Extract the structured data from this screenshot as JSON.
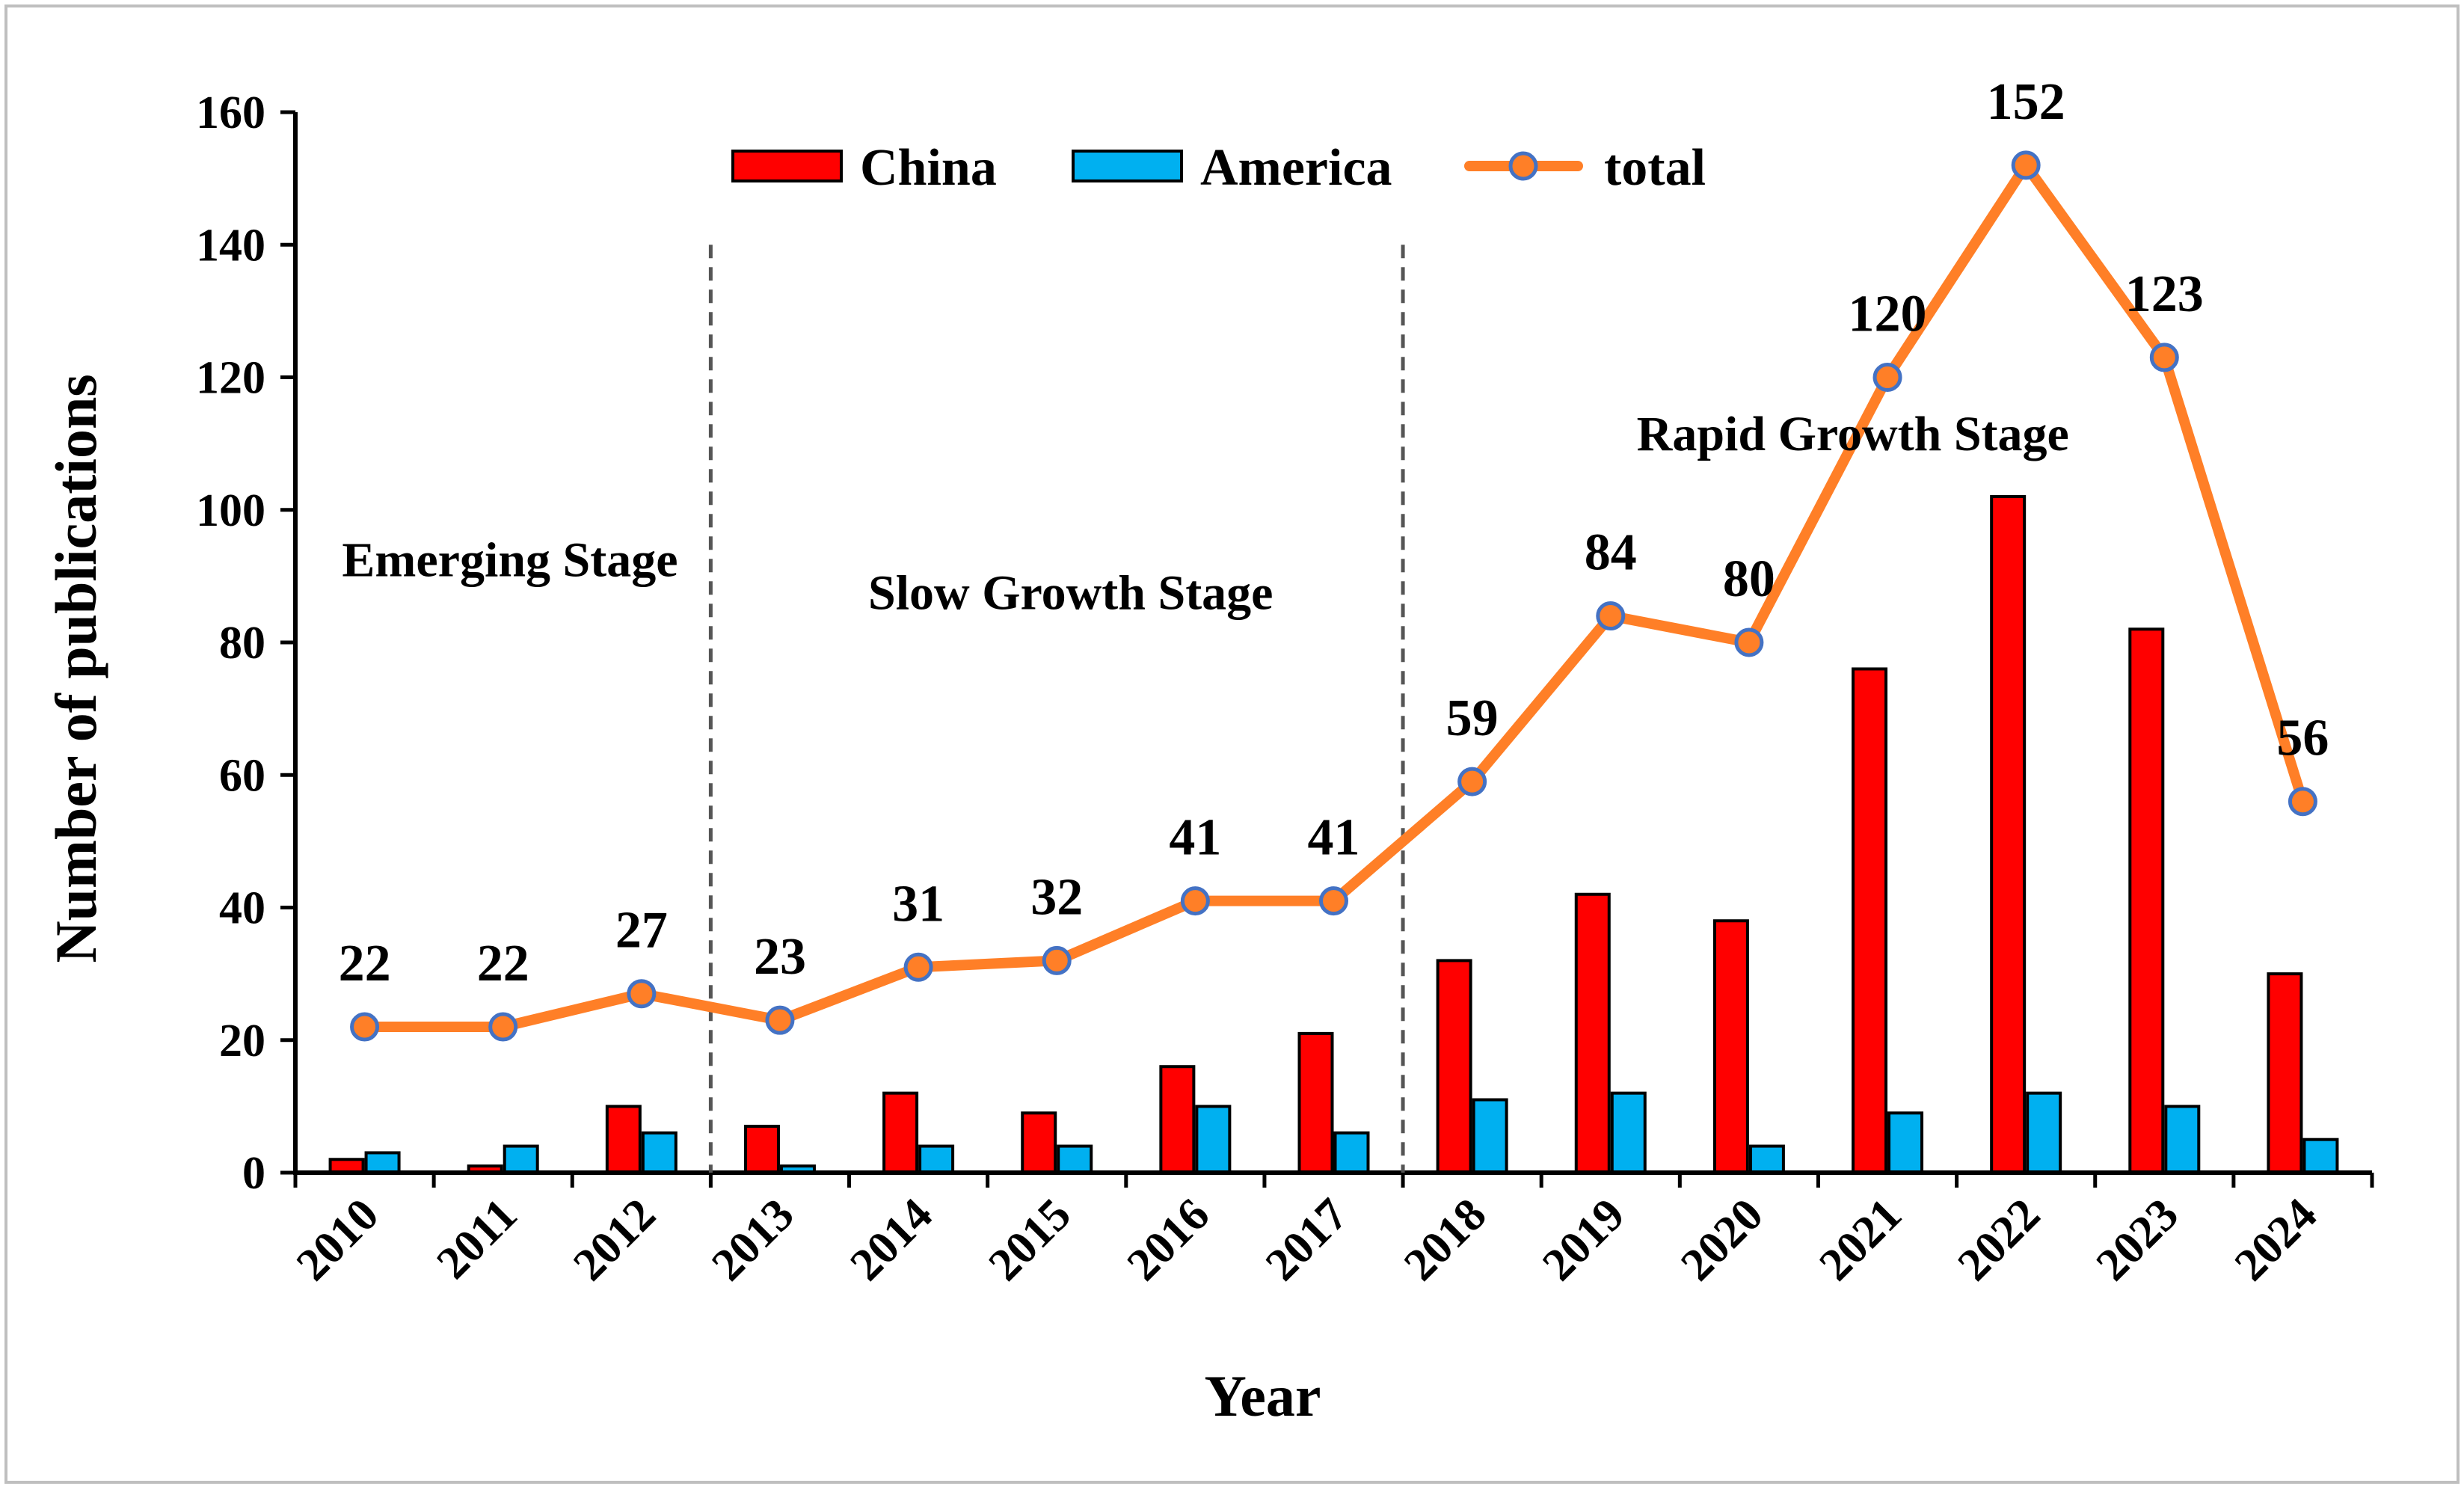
{
  "chart_data": {
    "type": "bar",
    "xlabel": "Year",
    "ylabel": "Number of publications",
    "ylim": [
      0,
      160
    ],
    "yticks": [
      0,
      20,
      40,
      60,
      80,
      100,
      120,
      140,
      160
    ],
    "categories": [
      "2010",
      "2011",
      "2012",
      "2013",
      "2014",
      "2015",
      "2016",
      "2017",
      "2018",
      "2019",
      "2020",
      "2021",
      "2022",
      "2023",
      "2024"
    ],
    "series": [
      {
        "name": "China",
        "kind": "bar",
        "color": "#ff0000",
        "values": [
          2,
          1,
          10,
          7,
          12,
          9,
          16,
          21,
          32,
          42,
          38,
          76,
          102,
          82,
          30
        ]
      },
      {
        "name": "America",
        "kind": "bar",
        "color": "#00b0f0",
        "values": [
          3,
          4,
          6,
          1,
          4,
          4,
          10,
          6,
          11,
          12,
          4,
          9,
          12,
          10,
          5
        ]
      },
      {
        "name": "total",
        "kind": "line",
        "color": "#ff7f27",
        "marker_color": "#4472c4",
        "values": [
          22,
          22,
          27,
          23,
          31,
          32,
          41,
          41,
          59,
          84,
          80,
          120,
          152,
          123,
          56
        ]
      }
    ],
    "data_labels": [
      "22",
      "22",
      "27",
      "23",
      "31",
      "32",
      "41",
      "41",
      "59",
      "84",
      "80",
      "120",
      "152",
      "123",
      "56"
    ],
    "stage_dividers_after": [
      "2012",
      "2017"
    ],
    "stages": [
      {
        "label": "Emerging Stage",
        "years": [
          "2010",
          "2012"
        ]
      },
      {
        "label": "Slow Growth Stage",
        "years": [
          "2013",
          "2017"
        ]
      },
      {
        "label": "Rapid Growth Stage",
        "years": [
          "2018",
          "2024"
        ]
      }
    ],
    "legend": [
      "China",
      "America",
      "total"
    ],
    "legend_position": "top-center"
  }
}
